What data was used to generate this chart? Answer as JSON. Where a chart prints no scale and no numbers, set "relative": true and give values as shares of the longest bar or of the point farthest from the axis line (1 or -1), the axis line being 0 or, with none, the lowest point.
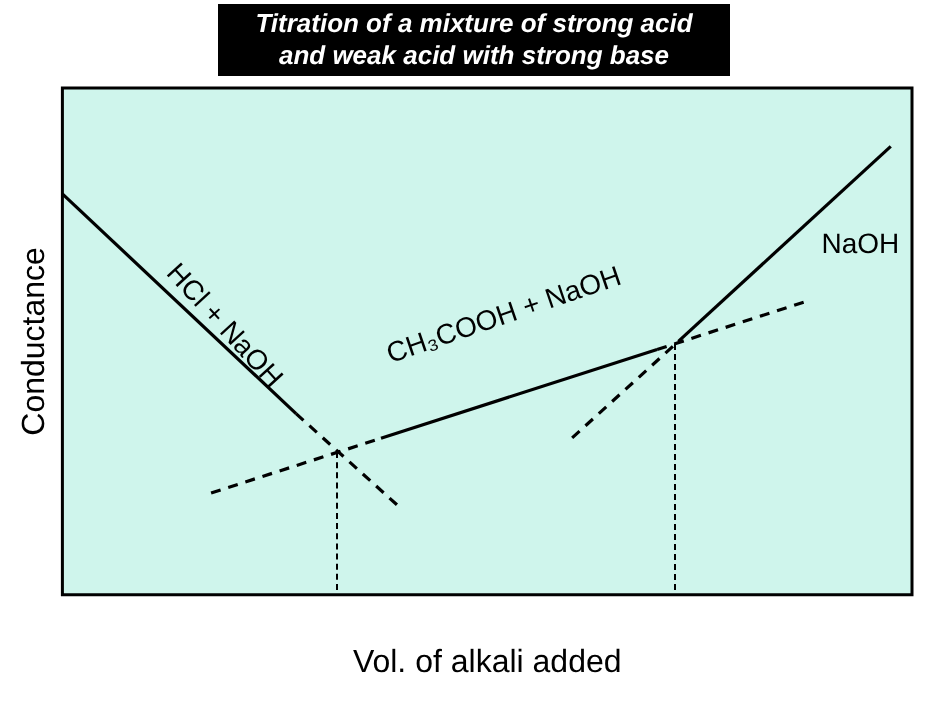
{
  "chart_data": {
    "type": "line",
    "title": "Titration of a mixture of strong acid and weak acid with strong base",
    "xlabel": "Vol. of alkali added",
    "ylabel": "Conductance",
    "relative": true,
    "grid": false,
    "legend": false,
    "marker": "none",
    "categories": [
      null,
      null,
      null,
      null,
      null,
      null,
      null,
      null,
      null,
      null,
      null,
      null,
      null,
      null,
      null,
      null,
      null,
      null,
      null,
      null,
      null,
      null,
      null,
      null,
      null,
      null,
      null,
      null,
      null,
      null,
      null,
      null,
      null,
      null,
      null,
      null,
      null,
      null,
      null,
      null,
      null
    ],
    "series": [
      {
        "color": "#000000",
        "line_style": "solid",
        "values": [
          0.894,
          null,
          null,
          null,
          null,
          null,
          null,
          null,
          null,
          null,
          null,
          0.404,
          null,
          null,
          null,
          null,
          null,
          null,
          null,
          null,
          null,
          null,
          null,
          null,
          null,
          null,
          null,
          null,
          null,
          null,
          null,
          null,
          null,
          null,
          null,
          null,
          null,
          null,
          null,
          null,
          null
        ]
      },
      {
        "color": "#000000",
        "line_style": "dashed",
        "values": [
          null,
          null,
          null,
          null,
          null,
          null,
          null,
          null,
          null,
          null,
          null,
          0.404,
          null,
          null,
          null,
          null,
          0.19,
          null,
          null,
          null,
          null,
          null,
          null,
          null,
          null,
          null,
          null,
          null,
          null,
          null,
          null,
          null,
          null,
          null,
          null,
          null,
          null,
          null,
          null,
          null,
          null
        ]
      },
      {
        "color": "#000000",
        "line_style": "solid",
        "values": [
          null,
          null,
          null,
          null,
          null,
          null,
          null,
          null,
          null,
          null,
          null,
          null,
          null,
          null,
          null,
          0.349,
          null,
          null,
          null,
          null,
          null,
          null,
          null,
          null,
          null,
          null,
          null,
          null,
          0.547,
          null,
          null,
          null,
          null,
          null,
          null,
          null,
          null,
          null,
          null,
          null,
          null
        ]
      },
      {
        "color": "#000000",
        "line_style": "dashed",
        "values": [
          null,
          null,
          null,
          null,
          null,
          null,
          null,
          0.227,
          null,
          null,
          null,
          null,
          null,
          null,
          null,
          0.349,
          null,
          null,
          null,
          null,
          null,
          null,
          null,
          null,
          null,
          null,
          null,
          null,
          null,
          null,
          null,
          null,
          null,
          null,
          null,
          null,
          null,
          null,
          null,
          null,
          null
        ]
      },
      {
        "color": "#000000",
        "line_style": "dashed",
        "values": [
          null,
          null,
          null,
          null,
          null,
          null,
          null,
          null,
          null,
          null,
          null,
          null,
          null,
          null,
          null,
          null,
          null,
          null,
          null,
          null,
          null,
          null,
          null,
          null,
          null,
          null,
          null,
          null,
          0.547,
          null,
          null,
          null,
          null,
          null,
          null,
          0.654,
          null,
          null,
          null,
          null,
          null
        ]
      },
      {
        "color": "#000000",
        "line_style": "solid",
        "values": [
          null,
          null,
          null,
          null,
          null,
          null,
          null,
          null,
          null,
          null,
          null,
          null,
          null,
          null,
          null,
          null,
          null,
          null,
          null,
          null,
          null,
          null,
          null,
          null,
          null,
          null,
          null,
          null,
          null,
          0.565,
          null,
          null,
          null,
          null,
          null,
          null,
          null,
          null,
          null,
          1,
          null
        ]
      },
      {
        "color": "#000000",
        "line_style": "dashed",
        "values": [
          null,
          null,
          null,
          null,
          null,
          null,
          null,
          null,
          null,
          null,
          null,
          null,
          null,
          null,
          null,
          null,
          null,
          null,
          null,
          null,
          null,
          null,
          null,
          null,
          0.35,
          null,
          null,
          null,
          null,
          0.565,
          null,
          null,
          null,
          null,
          null,
          null,
          null,
          null,
          null,
          null,
          null
        ]
      }
    ],
    "annotations": [
      "HCl + NaOH",
      "CH₃COOH + NaOH",
      "NaOH"
    ]
  }
}
